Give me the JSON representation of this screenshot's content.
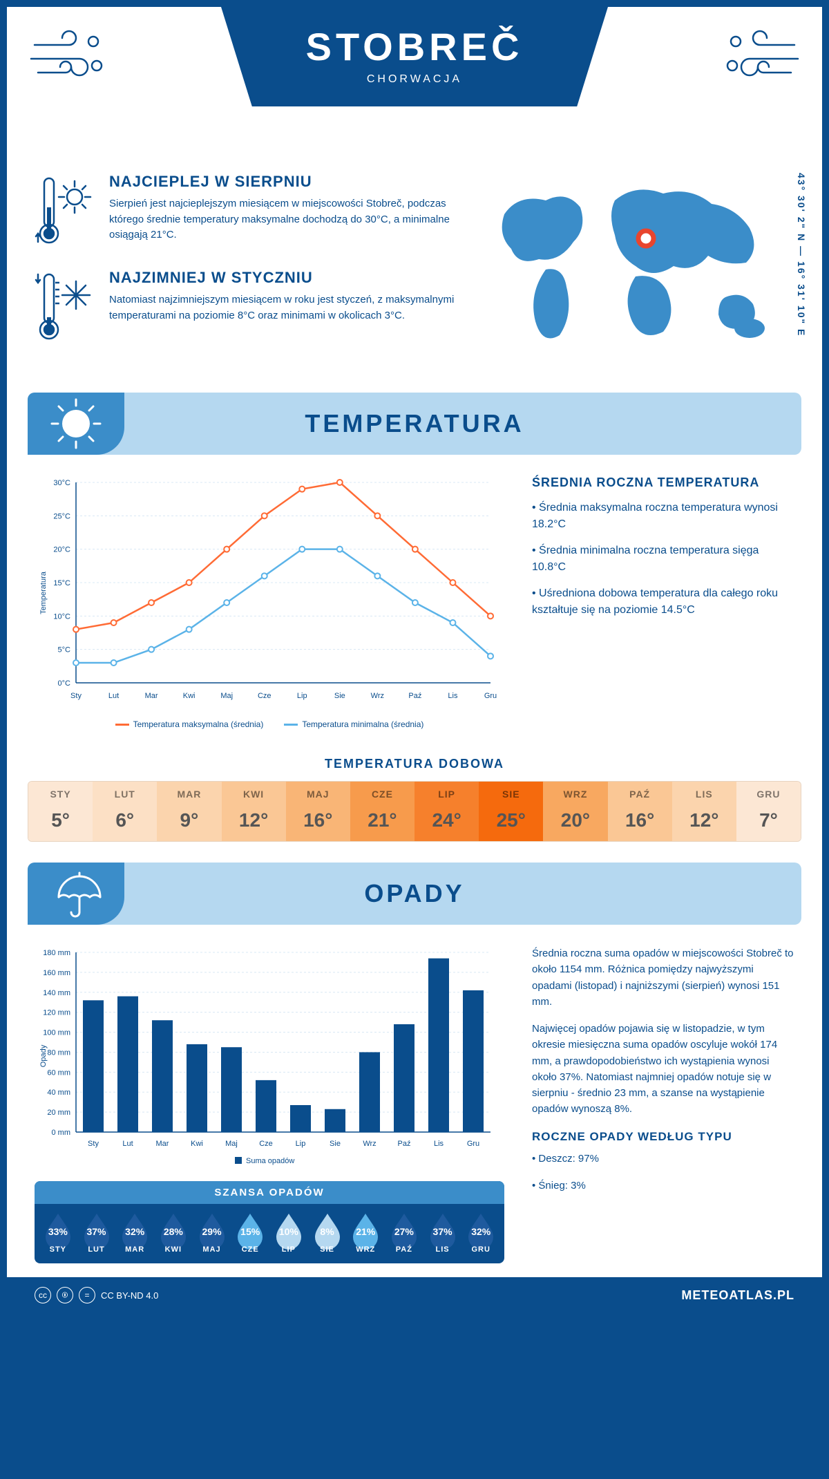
{
  "header": {
    "title": "STOBREČ",
    "subtitle": "CHORWACJA",
    "coords": "43° 30' 2\" N — 16° 31' 10\" E"
  },
  "colors": {
    "primary": "#0a4d8c",
    "accent_light": "#b5d8f0",
    "accent_mid": "#3b8dc9",
    "max_line": "#ff6b35",
    "min_line": "#5bb3e8",
    "bar": "#0a4d8c",
    "grid": "#d8e8f4"
  },
  "facts": {
    "warm": {
      "title": "NAJCIEPLEJ W SIERPNIU",
      "body": "Sierpień jest najcieplejszym miesiącem w miejscowości Stobreč, podczas którego średnie temperatury maksymalne dochodzą do 30°C, a minimalne osiągają 21°C."
    },
    "cold": {
      "title": "NAJZIMNIEJ W STYCZNIU",
      "body": "Natomiast najzimniejszym miesiącem w roku jest styczeń, z maksymalnymi temperaturami na poziomie 8°C oraz minimami w okolicach 3°C."
    }
  },
  "temperature": {
    "section_title": "TEMPERATURA",
    "y_label": "Temperatura",
    "months": [
      "Sty",
      "Lut",
      "Mar",
      "Kwi",
      "Maj",
      "Cze",
      "Lip",
      "Sie",
      "Wrz",
      "Paź",
      "Lis",
      "Gru"
    ],
    "max_series": [
      8,
      9,
      12,
      15,
      20,
      25,
      29,
      30,
      25,
      20,
      15,
      10
    ],
    "min_series": [
      3,
      3,
      5,
      8,
      12,
      16,
      20,
      20,
      16,
      12,
      9,
      4
    ],
    "ylim": [
      0,
      30
    ],
    "ytick_step": 5,
    "legend_max": "Temperatura maksymalna (średnia)",
    "legend_min": "Temperatura minimalna (średnia)",
    "summary_title": "ŚREDNIA ROCZNA TEMPERATURA",
    "summary_points": [
      "• Średnia maksymalna roczna temperatura wynosi 18.2°C",
      "• Średnia minimalna roczna temperatura sięga 10.8°C",
      "• Uśredniona dobowa temperatura dla całego roku kształtuje się na poziomie 14.5°C"
    ],
    "daily_title": "TEMPERATURA DOBOWA",
    "daily_months": [
      "STY",
      "LUT",
      "MAR",
      "KWI",
      "MAJ",
      "CZE",
      "LIP",
      "SIE",
      "WRZ",
      "PAŹ",
      "LIS",
      "GRU"
    ],
    "daily_values": [
      "5°",
      "6°",
      "9°",
      "12°",
      "16°",
      "21°",
      "24°",
      "25°",
      "20°",
      "16°",
      "12°",
      "7°"
    ],
    "daily_colors": [
      "#fce7d4",
      "#fce0c5",
      "#fbd4ad",
      "#fac795",
      "#f9b576",
      "#f79b4c",
      "#f6802c",
      "#f56a0d",
      "#f8a860",
      "#fac795",
      "#fbd4ad",
      "#fce7d4"
    ]
  },
  "precipitation": {
    "section_title": "OPADY",
    "y_label": "Opady",
    "months": [
      "Sty",
      "Lut",
      "Mar",
      "Kwi",
      "Maj",
      "Cze",
      "Lip",
      "Sie",
      "Wrz",
      "Paź",
      "Lis",
      "Gru"
    ],
    "values_mm": [
      132,
      136,
      112,
      88,
      85,
      52,
      27,
      23,
      80,
      108,
      174,
      142
    ],
    "ylim": [
      0,
      180
    ],
    "ytick_step": 20,
    "legend": "Suma opadów",
    "summary_1": "Średnia roczna suma opadów w miejscowości Stobreč to około 1154 mm. Różnica pomiędzy najwyższymi opadami (listopad) i najniższymi (sierpień) wynosi 151 mm.",
    "summary_2": "Najwięcej opadów pojawia się w listopadzie, w tym okresie miesięczna suma opadów oscyluje wokół 174 mm, a prawdopodobieństwo ich wystąpienia wynosi około 37%. Natomiast najmniej opadów notuje się w sierpniu - średnio 23 mm, a szanse na wystąpienie opadów wynoszą 8%.",
    "chance_title": "SZANSA OPADÓW",
    "chance_months": [
      "STY",
      "LUT",
      "MAR",
      "KWI",
      "MAJ",
      "CZE",
      "LIP",
      "SIE",
      "WRZ",
      "PAŹ",
      "LIS",
      "GRU"
    ],
    "chance_pct": [
      "33%",
      "37%",
      "32%",
      "28%",
      "29%",
      "15%",
      "10%",
      "8%",
      "21%",
      "27%",
      "37%",
      "32%"
    ],
    "chance_colors": [
      "#1e5a9e",
      "#1e5a9e",
      "#1e5a9e",
      "#1e5a9e",
      "#1e5a9e",
      "#5bb3e8",
      "#b5d8f0",
      "#b5d8f0",
      "#5bb3e8",
      "#1e5a9e",
      "#1e5a9e",
      "#1e5a9e"
    ],
    "by_type_title": "ROCZNE OPADY WEDŁUG TYPU",
    "by_type": [
      "• Deszcz: 97%",
      "• Śnieg: 3%"
    ]
  },
  "footer": {
    "license": "CC BY-ND 4.0",
    "site": "METEOATLAS.PL"
  }
}
